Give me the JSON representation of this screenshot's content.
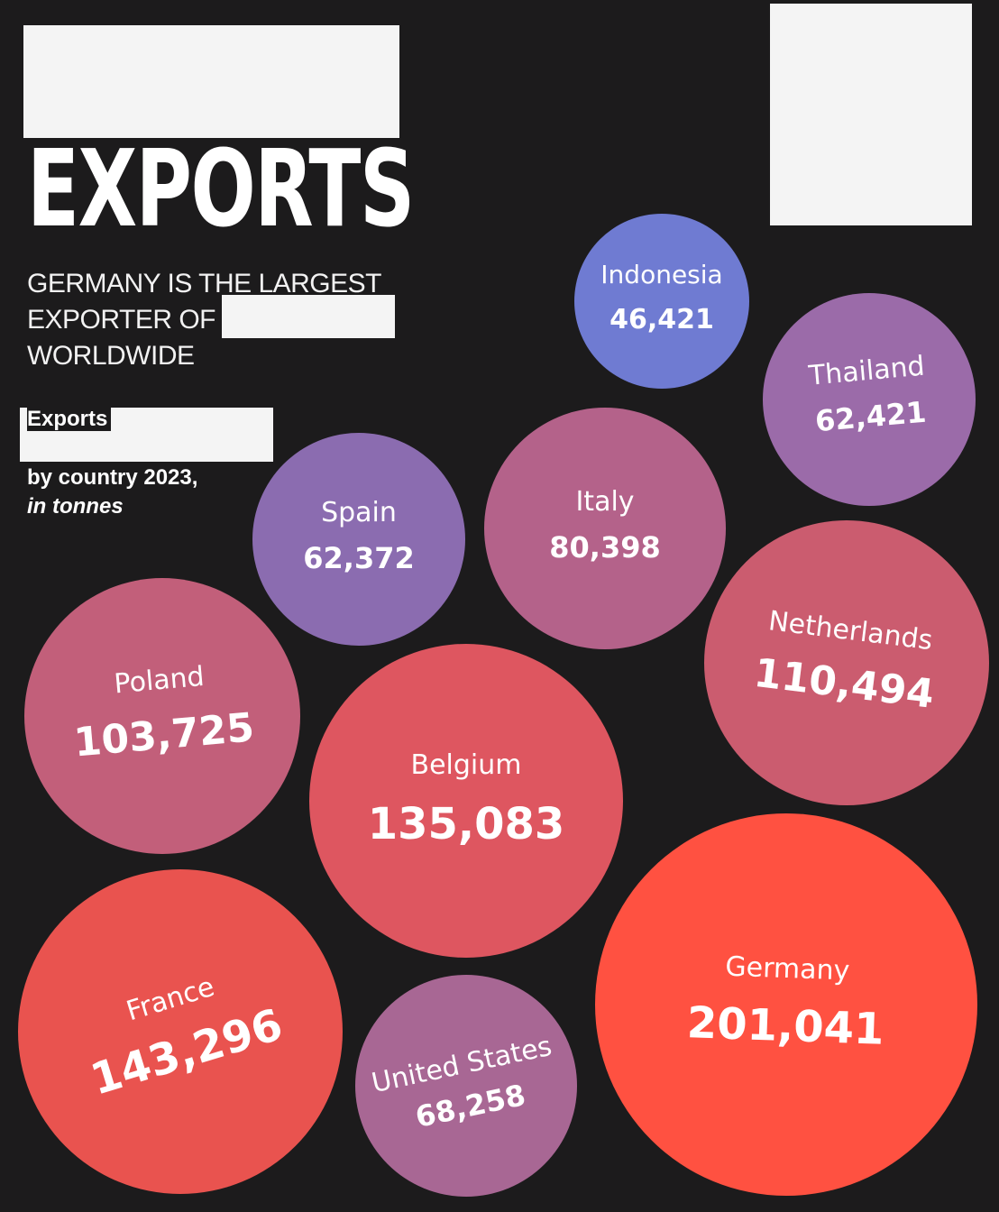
{
  "page": {
    "title": "EXPORTS",
    "subtitle_lines": [
      "GERMANY IS THE LARGEST",
      "EXPORTER OF",
      "WORLDWIDE"
    ],
    "label_line1": "Exports",
    "label_line2": "by country 2023,",
    "label_line3": "in tonnes"
  },
  "chart_data": {
    "type": "bubble",
    "title": "Exports by country 2023, in tonnes",
    "unit": "tonnes",
    "points": [
      {
        "country": "Indonesia",
        "label": "46,421",
        "value": 46421,
        "color": "#6f7bd2"
      },
      {
        "country": "Thailand",
        "label": "62,421",
        "value": 62421,
        "color": "#9b6ba9"
      },
      {
        "country": "Spain",
        "label": "62,372",
        "value": 62372,
        "color": "#8b6cb0"
      },
      {
        "country": "Italy",
        "label": "80,398",
        "value": 80398,
        "color": "#b4628a"
      },
      {
        "country": "Netherlands",
        "label": "110,494",
        "value": 110494,
        "color": "#cb5c6f"
      },
      {
        "country": "Poland",
        "label": "103,725",
        "value": 103725,
        "color": "#c25f7a"
      },
      {
        "country": "Belgium",
        "label": "135,083",
        "value": 135083,
        "color": "#de5660"
      },
      {
        "country": "France",
        "label": "143,296",
        "value": 143296,
        "color": "#e9534f"
      },
      {
        "country": "United States",
        "label": "68,258",
        "value": 68258,
        "color": "#a86794"
      },
      {
        "country": "Germany",
        "label": "201,041",
        "value": 201041,
        "color": "#ff5141"
      }
    ]
  }
}
